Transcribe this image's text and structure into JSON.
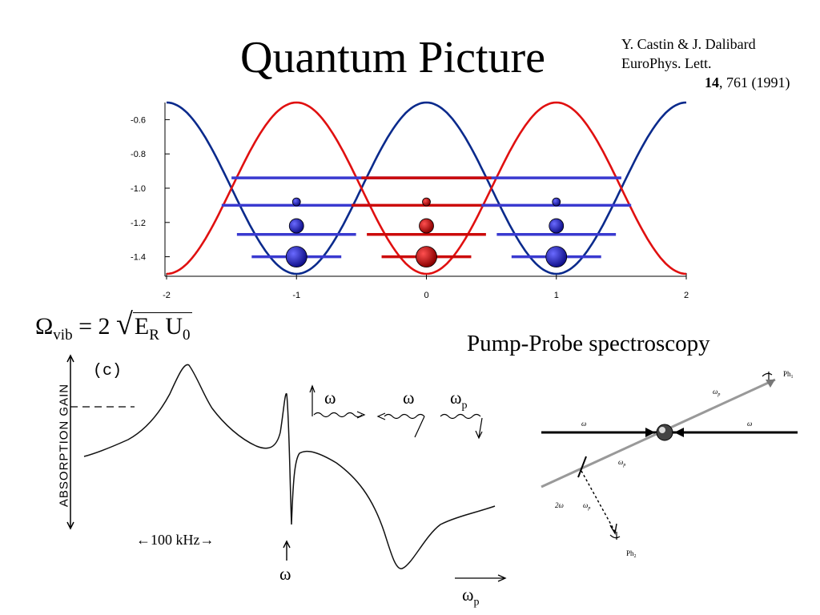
{
  "slide": {
    "title": "Quantum Picture",
    "citation": {
      "line1": "Y. Castin & J. Dalibard",
      "line2": "EuroPhys. Lett.",
      "volume": "14",
      "pages": ", 761 (1991)"
    },
    "formula": {
      "omega": "Ω",
      "omega_sub": "vib",
      "equals": " = 2 ",
      "E": "E",
      "E_sub": "R",
      "U": " U",
      "U_sub": "0"
    },
    "pump_probe_title": "Pump-Probe spectroscopy",
    "spectrum": {
      "panel_label": "(c)",
      "ylabel": "ABSORPTION  GAIN",
      "scale_label": "←100 kHz→",
      "omega_marker": "ω",
      "xaxis_label": "ω",
      "xaxis_sub": "p",
      "inset_labels": [
        "ω",
        "ω",
        "ω"
      ],
      "inset_p_sub": "p"
    },
    "diagram_labels": {
      "beam": "ω",
      "probe": "ω",
      "probe_sub": "p",
      "two_omega": "2ω",
      "ph1": "Ph",
      "ph1_sub": "1",
      "ph2": "Ph",
      "ph2_sub": "2"
    },
    "colors": {
      "red": "#e01010",
      "blue": "#0a2a8c",
      "level_blue": "#3a3ad0",
      "level_red": "#cc0a0a"
    }
  },
  "chart_data": {
    "type": "line",
    "title": "",
    "xlabel": "",
    "ylabel": "",
    "xlim": [
      -2,
      2
    ],
    "ylim": [
      -1.5,
      -0.5
    ],
    "x_ticks": [
      "-2",
      "-1",
      "0",
      "1",
      "2"
    ],
    "y_ticks": [
      "-0.6",
      "-0.8",
      "-1.0",
      "-1.2",
      "-1.4"
    ],
    "y_tick_values": [
      -0.6,
      -0.8,
      -1.0,
      -1.2,
      -1.4
    ],
    "series": [
      {
        "color": "blue",
        "formula": "-1 + 0.5*cos(pi*x)",
        "x": [
          -2,
          -1.5,
          -1,
          -0.5,
          0,
          0.5,
          1,
          1.5,
          2
        ],
        "y": [
          -0.5,
          -1.0,
          -1.5,
          -1.0,
          -0.5,
          -1.0,
          -1.5,
          -1.0,
          -0.5
        ]
      },
      {
        "color": "red",
        "formula": "-1 - 0.5*cos(pi*x)",
        "x": [
          -2,
          -1.5,
          -1,
          -0.5,
          0,
          0.5,
          1,
          1.5,
          2
        ],
        "y": [
          -1.5,
          -1.0,
          -0.5,
          -1.0,
          -1.5,
          -1.0,
          -0.5,
          -1.0,
          -1.5
        ]
      }
    ],
    "levels": [
      {
        "y": -1.4,
        "centers": [
          -1,
          0,
          1
        ],
        "colors": [
          "blue",
          "red",
          "blue"
        ]
      },
      {
        "y": -1.27,
        "centers": [
          -1,
          0,
          1
        ],
        "colors": [
          "blue",
          "red",
          "blue"
        ]
      },
      {
        "y": -1.1,
        "centers": [
          -1,
          0,
          1
        ],
        "colors": [
          "blue",
          "red",
          "blue"
        ]
      },
      {
        "y": -0.94,
        "centers": [
          -1,
          0,
          1
        ],
        "colors": [
          "blue",
          "red",
          "blue"
        ]
      }
    ],
    "balls": [
      {
        "x": -1,
        "y": -1.4,
        "size": "large",
        "color": "blue"
      },
      {
        "x": -1,
        "y": -1.22,
        "size": "medium",
        "color": "blue"
      },
      {
        "x": -1,
        "y": -1.08,
        "size": "small",
        "color": "blue"
      },
      {
        "x": 0,
        "y": -1.4,
        "size": "large",
        "color": "red"
      },
      {
        "x": 0,
        "y": -1.22,
        "size": "medium",
        "color": "red"
      },
      {
        "x": 0,
        "y": -1.08,
        "size": "small",
        "color": "red"
      },
      {
        "x": 1,
        "y": -1.4,
        "size": "large",
        "color": "blue"
      },
      {
        "x": 1,
        "y": -1.22,
        "size": "medium",
        "color": "blue"
      },
      {
        "x": 1,
        "y": -1.08,
        "size": "small",
        "color": "blue"
      }
    ]
  }
}
